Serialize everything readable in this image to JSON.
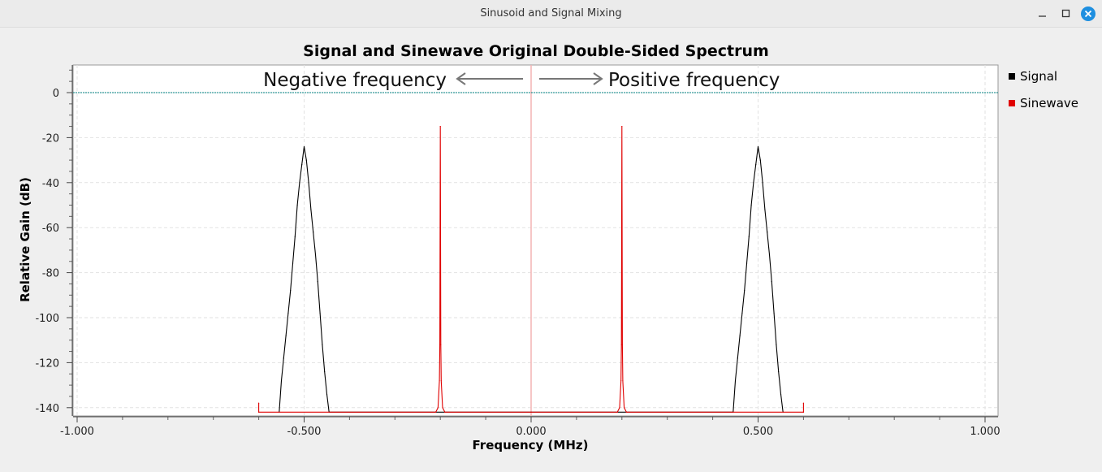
{
  "window": {
    "title": "Sinusoid and Signal Mixing",
    "controls": {
      "minimize": "minimize-icon",
      "maximize": "maximize-icon",
      "close": "close-icon"
    }
  },
  "annotations": {
    "negative": "Negative frequency",
    "positive": "Positive frequency"
  },
  "chart_data": {
    "type": "line",
    "title": "Signal and Sinewave Original Double-Sided Spectrum",
    "xlabel": "Frequency (MHz)",
    "ylabel": "Relative Gain (dB)",
    "xlim": [
      -1.0,
      1.0
    ],
    "ylim": [
      -140,
      10
    ],
    "x_ticks": [
      -1.0,
      -0.5,
      0.0,
      0.5,
      1.0
    ],
    "x_tick_labels": [
      "-1.000",
      "-0.500",
      "0.000",
      "0.500",
      "1.000"
    ],
    "y_ticks": [
      0,
      -20,
      -40,
      -60,
      -80,
      -100,
      -120,
      -140
    ],
    "y_tick_labels": [
      "0",
      "-20",
      "-40",
      "-60",
      "-80",
      "-100",
      "-120",
      "-140"
    ],
    "grid": true,
    "legend_position": "right",
    "reference_line": {
      "y": 0,
      "color": "#008080"
    },
    "center_line": {
      "x": 0.0,
      "color": "#f4b4b4"
    },
    "series": [
      {
        "name": "Signal",
        "color": "#000000",
        "points": [
          [
            -0.555,
            -142
          ],
          [
            -0.55,
            -128
          ],
          [
            -0.545,
            -118
          ],
          [
            -0.54,
            -108
          ],
          [
            -0.535,
            -98
          ],
          [
            -0.53,
            -88
          ],
          [
            -0.525,
            -76
          ],
          [
            -0.52,
            -64
          ],
          [
            -0.515,
            -50
          ],
          [
            -0.51,
            -40
          ],
          [
            -0.505,
            -32
          ],
          [
            -0.5,
            -24
          ],
          [
            -0.495,
            -30
          ],
          [
            -0.49,
            -40
          ],
          [
            -0.485,
            -52
          ],
          [
            -0.48,
            -62
          ],
          [
            -0.475,
            -72
          ],
          [
            -0.47,
            -84
          ],
          [
            -0.465,
            -98
          ],
          [
            -0.46,
            -112
          ],
          [
            -0.455,
            -124
          ],
          [
            -0.45,
            -134
          ],
          [
            -0.445,
            -142
          ],
          [
            0.445,
            -142
          ],
          [
            0.45,
            -128
          ],
          [
            0.455,
            -118
          ],
          [
            0.46,
            -108
          ],
          [
            0.465,
            -98
          ],
          [
            0.47,
            -88
          ],
          [
            0.475,
            -76
          ],
          [
            0.48,
            -64
          ],
          [
            0.485,
            -50
          ],
          [
            0.49,
            -40
          ],
          [
            0.495,
            -32
          ],
          [
            0.5,
            -24
          ],
          [
            0.505,
            -30
          ],
          [
            0.51,
            -40
          ],
          [
            0.515,
            -52
          ],
          [
            0.52,
            -62
          ],
          [
            0.525,
            -72
          ],
          [
            0.53,
            -84
          ],
          [
            0.535,
            -98
          ],
          [
            0.54,
            -112
          ],
          [
            0.545,
            -124
          ],
          [
            0.55,
            -134
          ],
          [
            0.555,
            -142
          ]
        ]
      },
      {
        "name": "Sinewave",
        "color": "#e00000",
        "points": [
          [
            -0.6,
            -142
          ],
          [
            -0.6,
            -138
          ],
          [
            -0.6,
            -142
          ],
          [
            -0.21,
            -142
          ],
          [
            -0.205,
            -140
          ],
          [
            -0.202,
            -128
          ],
          [
            -0.201,
            -112
          ],
          [
            -0.2,
            -15
          ],
          [
            -0.199,
            -112
          ],
          [
            -0.198,
            -128
          ],
          [
            -0.195,
            -140
          ],
          [
            -0.19,
            -142
          ],
          [
            0.19,
            -142
          ],
          [
            0.195,
            -140
          ],
          [
            0.198,
            -128
          ],
          [
            0.199,
            -112
          ],
          [
            0.2,
            -15
          ],
          [
            0.201,
            -112
          ],
          [
            0.202,
            -128
          ],
          [
            0.205,
            -140
          ],
          [
            0.21,
            -142
          ],
          [
            0.6,
            -142
          ],
          [
            0.6,
            -138
          ],
          [
            0.6,
            -142
          ]
        ]
      }
    ]
  }
}
